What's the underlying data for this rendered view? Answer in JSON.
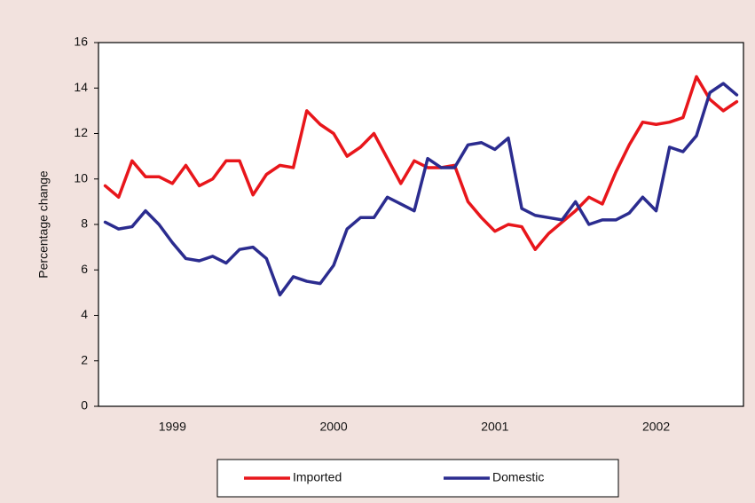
{
  "chart_data": {
    "type": "line",
    "y_label": "Percentage change",
    "categories": [
      null,
      null,
      null,
      null,
      null,
      "1999",
      null,
      null,
      null,
      null,
      null,
      null,
      null,
      null,
      null,
      null,
      null,
      "2000",
      null,
      null,
      null,
      null,
      null,
      null,
      null,
      null,
      null,
      null,
      null,
      "2001",
      null,
      null,
      null,
      null,
      null,
      null,
      null,
      null,
      null,
      null,
      null,
      "2002",
      null,
      null,
      null,
      null,
      null,
      null
    ],
    "series": [
      {
        "name": "Imported",
        "color": "#e8161b",
        "values": [
          9.7,
          9.2,
          10.8,
          10.1,
          10.1,
          9.8,
          10.6,
          9.7,
          10.0,
          10.8,
          10.8,
          9.3,
          10.2,
          10.6,
          10.5,
          13.0,
          12.4,
          12.0,
          11.0,
          11.4,
          12.0,
          10.9,
          9.8,
          10.8,
          10.5,
          10.5,
          10.6,
          9.0,
          8.3,
          7.7,
          8.0,
          7.9,
          6.9,
          7.6,
          8.1,
          8.6,
          9.2,
          8.9,
          10.3,
          11.5,
          12.5,
          12.4,
          12.5,
          12.7,
          14.5,
          13.5,
          13.0,
          13.4
        ]
      },
      {
        "name": "Domestic",
        "color": "#2b2c8f",
        "values": [
          8.1,
          7.8,
          7.9,
          8.6,
          8.0,
          7.2,
          6.5,
          6.4,
          6.6,
          6.3,
          6.9,
          7.0,
          6.5,
          4.9,
          5.7,
          5.5,
          5.4,
          6.2,
          7.8,
          8.3,
          8.3,
          9.2,
          8.9,
          8.6,
          10.9,
          10.5,
          10.5,
          11.5,
          11.6,
          11.3,
          11.8,
          8.7,
          8.4,
          8.3,
          8.2,
          9.0,
          8.0,
          8.2,
          8.2,
          8.5,
          9.2,
          8.6,
          11.4,
          11.2,
          11.9,
          13.8,
          14.2,
          13.7
        ]
      }
    ],
    "ylim": [
      0,
      16
    ],
    "yticks": [
      0,
      2,
      4,
      6,
      8,
      10,
      12,
      14,
      16
    ],
    "grid": false,
    "legend": "bottom"
  }
}
